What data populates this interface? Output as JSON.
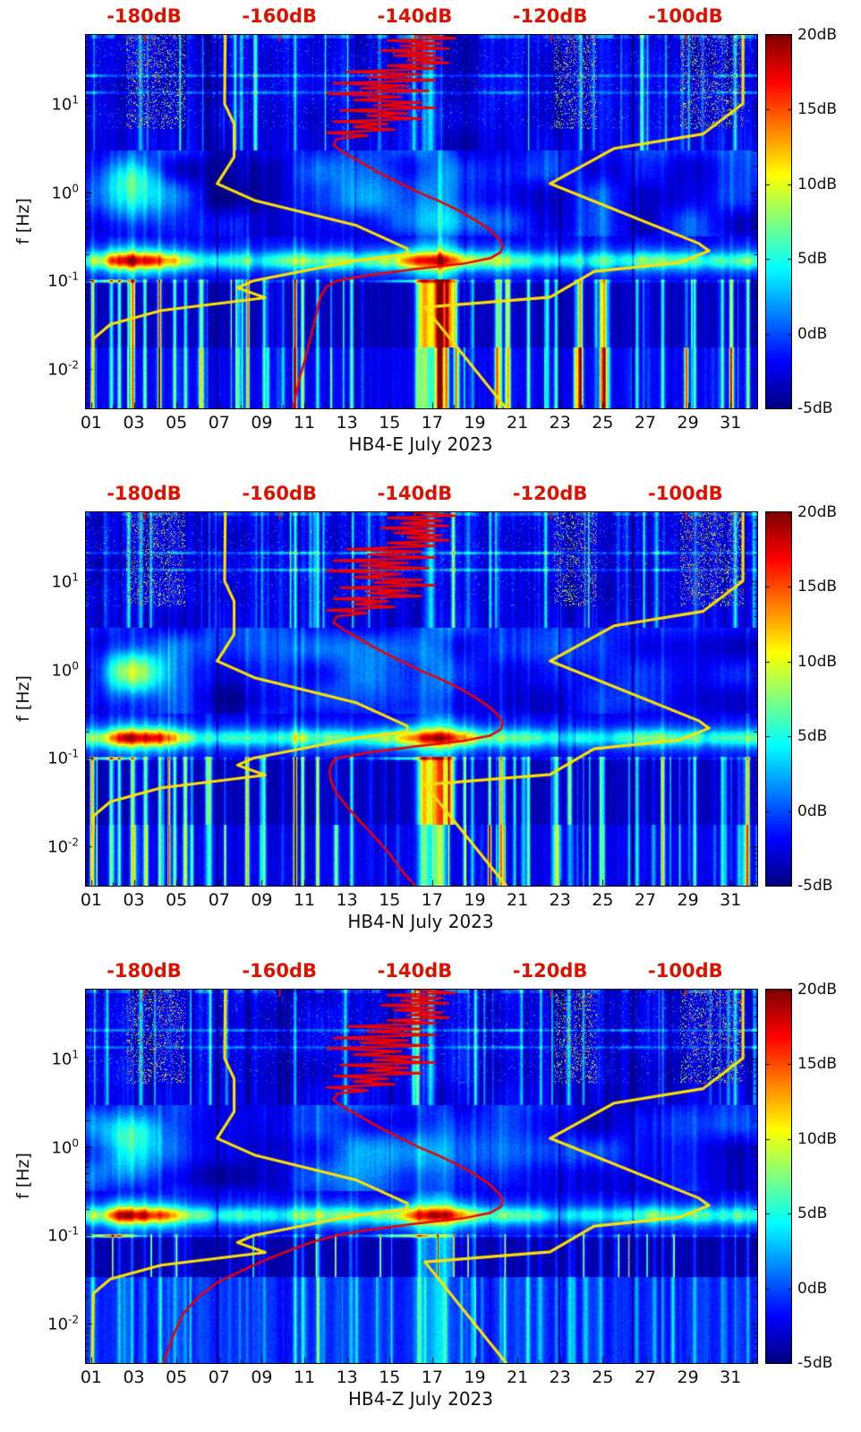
{
  "figure": {
    "ylabel": "f [Hz]",
    "panels": [
      {
        "channel": "HB4-E",
        "xlabel": "HB4-E July 2023"
      },
      {
        "channel": "HB4-N",
        "xlabel": "HB4-N July 2023"
      },
      {
        "channel": "HB4-Z",
        "xlabel": "HB4-Z July 2023"
      }
    ],
    "x_ticks": [
      {
        "label": "01",
        "day": 1
      },
      {
        "label": "03",
        "day": 3
      },
      {
        "label": "05",
        "day": 5
      },
      {
        "label": "07",
        "day": 7
      },
      {
        "label": "09",
        "day": 9
      },
      {
        "label": "11",
        "day": 11
      },
      {
        "label": "13",
        "day": 13
      },
      {
        "label": "15",
        "day": 15
      },
      {
        "label": "17",
        "day": 17
      },
      {
        "label": "19",
        "day": 19
      },
      {
        "label": "21",
        "day": 21
      },
      {
        "label": "23",
        "day": 23
      },
      {
        "label": "25",
        "day": 25
      },
      {
        "label": "27",
        "day": 27
      },
      {
        "label": "29",
        "day": 29
      },
      {
        "label": "31",
        "day": 31
      }
    ],
    "y_ticks": [
      {
        "base": "10",
        "exp": "1",
        "hz": 10
      },
      {
        "base": "10",
        "exp": "0",
        "hz": 1
      },
      {
        "base": "10",
        "exp": "-1",
        "hz": 0.1
      },
      {
        "base": "10",
        "exp": "-2",
        "hz": 0.01
      }
    ],
    "top_ticks": [
      {
        "label": "-180dB",
        "db": -180
      },
      {
        "label": "-160dB",
        "db": -160
      },
      {
        "label": "-140dB",
        "db": -140
      },
      {
        "label": "-120dB",
        "db": -120
      },
      {
        "label": "-100dB",
        "db": -100
      }
    ],
    "colorbar_ticks": [
      {
        "label": "20dB",
        "db": 20
      },
      {
        "label": "15dB",
        "db": 15
      },
      {
        "label": "10dB",
        "db": 10
      },
      {
        "label": "5dB",
        "db": 5
      },
      {
        "label": "0dB",
        "db": 0
      },
      {
        "label": "-5dB",
        "db": -5
      }
    ]
  },
  "colors": {
    "top_axis": "#dd1100",
    "curve_yellow": "#ffe100",
    "curve_red": "#ee0000",
    "frame": "#000000",
    "label_text": "#111111"
  },
  "chart_data": {
    "type": "heatmap",
    "subtype": "seismic power spectral density spectrogram, 3 stacked panels",
    "panels": [
      "HB4-E July 2023",
      "HB4-N July 2023",
      "HB4-Z July 2023"
    ],
    "x_axis": {
      "unit": "day of month",
      "month": "July 2023",
      "range": [
        0.75,
        32.25
      ],
      "ticks": [
        1,
        3,
        5,
        7,
        9,
        11,
        13,
        15,
        17,
        19,
        21,
        23,
        25,
        27,
        29,
        31
      ]
    },
    "y_axis": {
      "label": "f [Hz]",
      "scale": "log10",
      "range_hz": [
        0.0036,
        60
      ],
      "ticks_hz": [
        10,
        1,
        0.1,
        0.01
      ]
    },
    "color_axis": {
      "unit": "dB",
      "range": [
        -5,
        20
      ],
      "colormap": "jet",
      "ticks_db": [
        20,
        15,
        10,
        5,
        0,
        -5
      ],
      "legend_position": "right colorbar"
    },
    "top_axis": {
      "unit": "dB",
      "applies_to": "overlay PSD curves",
      "range": [
        -188.6,
        -89.4
      ],
      "ticks": [
        -180,
        -160,
        -140,
        -120,
        -100
      ]
    },
    "overlay_curves": {
      "low_noise_model": {
        "color": "yellow",
        "points_f_hz_db": [
          [
            60,
            -168
          ],
          [
            10,
            -168.1
          ],
          [
            5.9,
            -166.7
          ],
          [
            2.5,
            -166.7
          ],
          [
            1.25,
            -169.2
          ],
          [
            0.81,
            -163.7
          ],
          [
            0.42,
            -148.6
          ],
          [
            0.23,
            -141.1
          ],
          [
            0.2,
            -141.1
          ],
          [
            0.167,
            -149
          ],
          [
            0.1,
            -163.8
          ],
          [
            0.083,
            -166.2
          ],
          [
            0.064,
            -162.1
          ],
          [
            0.046,
            -177.5
          ],
          [
            0.032,
            -185
          ],
          [
            0.022,
            -187.5
          ],
          [
            0.0036,
            -187.7
          ]
        ]
      },
      "high_noise_model": {
        "color": "yellow",
        "points_f_hz_db": [
          [
            60,
            -91.5
          ],
          [
            10,
            -91.5
          ],
          [
            4.55,
            -97.4
          ],
          [
            3.13,
            -110.5
          ],
          [
            1.25,
            -120
          ],
          [
            0.263,
            -98
          ],
          [
            0.217,
            -96.5
          ],
          [
            0.159,
            -101
          ],
          [
            0.127,
            -113.5
          ],
          [
            0.065,
            -120
          ],
          [
            0.05,
            -138.5
          ],
          [
            0.0036,
            -126.5
          ]
        ]
      },
      "median_psd_high_f": [
        [
          60,
          -140
        ],
        [
          55,
          -134
        ],
        [
          52,
          -144
        ],
        [
          48,
          -136
        ],
        [
          45,
          -142
        ],
        [
          42,
          -135
        ],
        [
          40,
          -145
        ],
        [
          37,
          -137
        ],
        [
          35,
          -143
        ],
        [
          33,
          -136
        ],
        [
          31,
          -141
        ],
        [
          29,
          -135
        ],
        [
          27,
          -144
        ],
        [
          25,
          -137
        ],
        [
          23,
          -150
        ],
        [
          21.5,
          -139
        ],
        [
          20,
          -147
        ],
        [
          18.5,
          -137
        ],
        [
          17,
          -152
        ],
        [
          16,
          -141
        ],
        [
          15,
          -148
        ],
        [
          14,
          -138
        ],
        [
          13,
          -153
        ],
        [
          12,
          -142
        ],
        [
          11,
          -149
        ],
        [
          10.3,
          -139
        ],
        [
          9.6,
          -146
        ],
        [
          9,
          -137
        ],
        [
          8.4,
          -151
        ],
        [
          7.8,
          -141
        ],
        [
          7.3,
          -147
        ],
        [
          6.8,
          -139
        ],
        [
          6.3,
          -152
        ],
        [
          5.9,
          -144
        ],
        [
          5.5,
          -149
        ],
        [
          5.1,
          -143
        ],
        [
          4.7,
          -153
        ],
        [
          4.35,
          -147
        ],
        [
          4.0,
          -151.5
        ]
      ],
      "median_psd_low_f": {
        "HB4-E": [
          [
            3.4,
            -152
          ],
          [
            2.8,
            -150.5
          ],
          [
            2.2,
            -148
          ],
          [
            1.7,
            -145.5
          ],
          [
            1.3,
            -142.5
          ],
          [
            1.0,
            -139.5
          ],
          [
            0.8,
            -136.5
          ],
          [
            0.62,
            -133.5
          ],
          [
            0.48,
            -131
          ],
          [
            0.38,
            -129
          ],
          [
            0.3,
            -127.6
          ],
          [
            0.25,
            -127
          ],
          [
            0.21,
            -127.3
          ],
          [
            0.18,
            -128.8
          ],
          [
            0.155,
            -133
          ],
          [
            0.135,
            -140
          ],
          [
            0.115,
            -147
          ],
          [
            0.1,
            -151.5
          ],
          [
            0.085,
            -153
          ],
          [
            0.07,
            -153.8
          ],
          [
            0.055,
            -154.2
          ],
          [
            0.04,
            -154.6
          ],
          [
            0.03,
            -155
          ],
          [
            0.02,
            -155.6
          ],
          [
            0.013,
            -156.2
          ],
          [
            0.008,
            -157
          ],
          [
            0.005,
            -157.6
          ],
          [
            0.0036,
            -158
          ]
        ],
        "HB4-N": [
          [
            3.4,
            -152
          ],
          [
            2.8,
            -150.5
          ],
          [
            2.2,
            -148
          ],
          [
            1.7,
            -145.5
          ],
          [
            1.3,
            -142.5
          ],
          [
            1.0,
            -139.5
          ],
          [
            0.8,
            -136.5
          ],
          [
            0.62,
            -133.5
          ],
          [
            0.48,
            -131
          ],
          [
            0.38,
            -129
          ],
          [
            0.3,
            -127.6
          ],
          [
            0.25,
            -127
          ],
          [
            0.21,
            -127.3
          ],
          [
            0.18,
            -128.8
          ],
          [
            0.155,
            -133
          ],
          [
            0.135,
            -140
          ],
          [
            0.115,
            -147
          ],
          [
            0.1,
            -151.5
          ],
          [
            0.085,
            -152.3
          ],
          [
            0.07,
            -152.6
          ],
          [
            0.055,
            -152.4
          ],
          [
            0.04,
            -151.6
          ],
          [
            0.03,
            -150.3
          ],
          [
            0.02,
            -148.3
          ],
          [
            0.013,
            -146
          ],
          [
            0.008,
            -143.6
          ],
          [
            0.005,
            -141.6
          ],
          [
            0.0036,
            -140
          ]
        ],
        "HB4-Z": [
          [
            3.4,
            -152
          ],
          [
            2.8,
            -150.5
          ],
          [
            2.2,
            -148
          ],
          [
            1.7,
            -145.5
          ],
          [
            1.3,
            -142.5
          ],
          [
            1.0,
            -139.5
          ],
          [
            0.8,
            -136.5
          ],
          [
            0.62,
            -133.5
          ],
          [
            0.48,
            -131
          ],
          [
            0.38,
            -129
          ],
          [
            0.3,
            -127.6
          ],
          [
            0.25,
            -127
          ],
          [
            0.21,
            -127.3
          ],
          [
            0.18,
            -128.8
          ],
          [
            0.155,
            -133
          ],
          [
            0.135,
            -140
          ],
          [
            0.115,
            -147
          ],
          [
            0.1,
            -151.5
          ],
          [
            0.085,
            -155
          ],
          [
            0.07,
            -158
          ],
          [
            0.055,
            -161.5
          ],
          [
            0.04,
            -165.5
          ],
          [
            0.03,
            -169
          ],
          [
            0.02,
            -172
          ],
          [
            0.013,
            -174.2
          ],
          [
            0.008,
            -175.5
          ],
          [
            0.005,
            -176.5
          ],
          [
            0.0036,
            -177.2
          ]
        ]
      }
    },
    "spectrogram_features": {
      "background_level_db": -3,
      "microseism_band_hz": [
        0.11,
        0.33
      ],
      "microseism_envelope": {
        "days": [
          0.8,
          1.5,
          2.2,
          2.8,
          3.5,
          4.3,
          5.0,
          6.0,
          7.0,
          8.0,
          9.0,
          10.0,
          10.6,
          11.5,
          12.5,
          13.5,
          14.5,
          15.3,
          16.0,
          16.8,
          17.5,
          18.2,
          19.0,
          20.0,
          21.0,
          22.0,
          23.0,
          24.0,
          25.0,
          26.0,
          26.8,
          27.5,
          28.2,
          29.0,
          29.8,
          30.5,
          31.5,
          32.3
        ],
        "db": [
          9,
          12,
          20,
          22,
          21,
          18,
          14,
          9,
          7.5,
          9,
          7,
          8.5,
          11,
          9.5,
          11,
          9,
          10,
          13,
          17,
          19.5,
          19,
          16,
          12,
          10,
          9,
          8,
          6.5,
          7.5,
          7,
          8,
          10,
          11,
          10,
          9,
          8,
          8.5,
          9,
          9
        ]
      },
      "broadband_event": {
        "days": [
          16.2,
          18.3
        ],
        "freq_hz": [
          0.02,
          0.12
        ],
        "peak_db": 21
      },
      "narrow_stripes": [
        {
          "day": 1.05,
          "db": 15
        },
        {
          "day": 2.3,
          "db": 11
        },
        {
          "day": 2.9,
          "db": 13
        },
        {
          "day": 3.5,
          "db": 10
        },
        {
          "day": 4.2,
          "db": 12
        },
        {
          "day": 4.9,
          "db": 11
        },
        {
          "day": 5.4,
          "db": 9
        },
        {
          "day": 8.3,
          "db": 8
        },
        {
          "day": 9.1,
          "db": 9
        },
        {
          "day": 10.55,
          "db": 19
        },
        {
          "day": 10.9,
          "db": 13
        },
        {
          "day": 11.6,
          "db": 8
        },
        {
          "day": 13.2,
          "db": 10
        },
        {
          "day": 20.2,
          "db": 9
        },
        {
          "day": 21.5,
          "db": 11
        },
        {
          "day": 22.8,
          "db": 9
        },
        {
          "day": 24.9,
          "db": 12
        },
        {
          "day": 26.6,
          "db": 8
        },
        {
          "day": 27.8,
          "db": 9
        },
        {
          "day": 29.3,
          "db": 10
        },
        {
          "day": 30.6,
          "db": 9
        },
        {
          "day": 31.8,
          "db": 12
        }
      ],
      "dropout_columns_days": [
        6.9,
        22.95,
        26.4
      ],
      "hf_speckle_clusters_days": [
        [
          2.6,
          5.4
        ],
        [
          22.7,
          24.7
        ],
        [
          28.6,
          31.6
        ]
      ],
      "panel_z_low_band": {
        "below_hz": 0.034,
        "level_db": 0,
        "note": "more uniform light blue with muted stripes on vertical channel"
      }
    }
  }
}
